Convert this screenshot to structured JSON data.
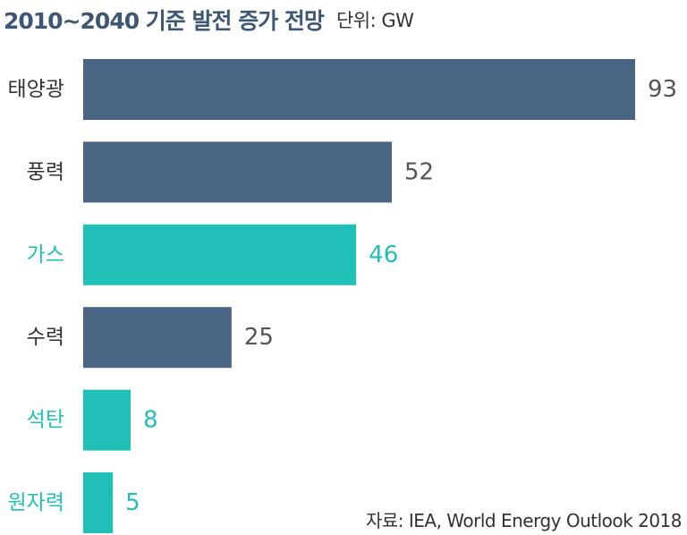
{
  "chart_data": {
    "type": "bar",
    "orientation": "horizontal",
    "title": "2010~2040 기준 발전 증가 전망",
    "unit": "단위: GW",
    "source": "자료: IEA, World Energy Outlook 2018",
    "categories": [
      "태양광",
      "풍력",
      "가스",
      "수력",
      "석탄",
      "원자력"
    ],
    "values": [
      93,
      52,
      46,
      25,
      8,
      5
    ],
    "highlight": [
      false,
      false,
      true,
      false,
      true,
      true
    ],
    "xlim": [
      0,
      93
    ],
    "grid": false,
    "legend": "none",
    "colors": {
      "default_bar": "#4a6583",
      "highlight_bar": "#20c0b8",
      "default_text": "#333333",
      "value_text": "#555555",
      "title": "#3d5775"
    }
  }
}
